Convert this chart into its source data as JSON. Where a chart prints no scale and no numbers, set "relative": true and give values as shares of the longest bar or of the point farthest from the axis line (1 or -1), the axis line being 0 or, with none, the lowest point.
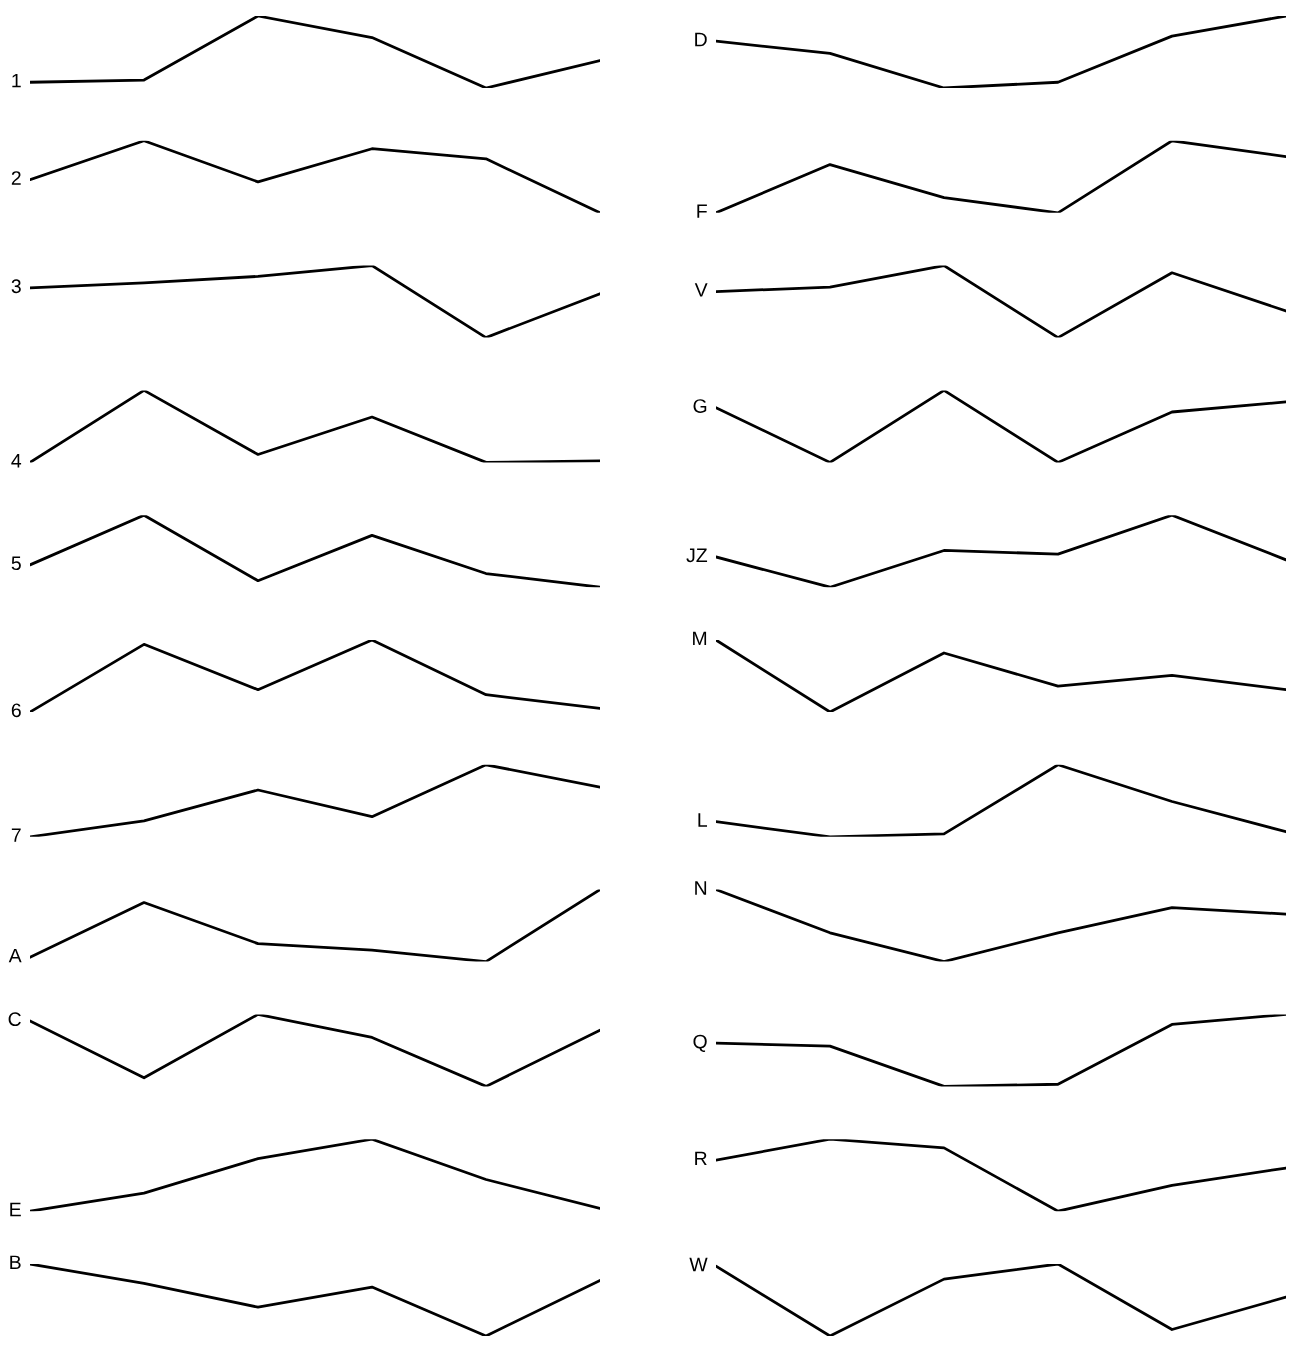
{
  "chart_data": [
    {
      "type": "line",
      "relative": true,
      "categories": [
        null,
        null,
        null,
        null,
        null,
        null
      ],
      "series": [
        {
          "name": "1",
          "color": "#000000",
          "values": [
            0.08,
            0.11,
            1,
            0.7,
            0,
            0.38
          ]
        }
      ]
    },
    {
      "type": "line",
      "relative": true,
      "categories": [
        null,
        null,
        null,
        null,
        null,
        null
      ],
      "series": [
        {
          "name": "D",
          "color": "#000000",
          "values": [
            0.65,
            0.48,
            0,
            0.08,
            0.72,
            1
          ]
        }
      ]
    },
    {
      "type": "line",
      "relative": true,
      "categories": [
        null,
        null,
        null,
        null,
        null,
        null
      ],
      "series": [
        {
          "name": "2",
          "color": "#000000",
          "values": [
            0.46,
            1,
            0.43,
            0.89,
            0.75,
            0
          ]
        }
      ]
    },
    {
      "type": "line",
      "relative": true,
      "categories": [
        null,
        null,
        null,
        null,
        null,
        null
      ],
      "series": [
        {
          "name": "F",
          "color": "#000000",
          "values": [
            0,
            0.67,
            0.21,
            0,
            1,
            0.78
          ]
        }
      ]
    },
    {
      "type": "line",
      "relative": true,
      "categories": [
        null,
        null,
        null,
        null,
        null,
        null
      ],
      "series": [
        {
          "name": "3",
          "color": "#000000",
          "values": [
            0.69,
            0.76,
            0.85,
            1,
            0,
            0.61
          ]
        }
      ]
    },
    {
      "type": "line",
      "relative": true,
      "categories": [
        null,
        null,
        null,
        null,
        null,
        null
      ],
      "series": [
        {
          "name": "V",
          "color": "#000000",
          "values": [
            0.64,
            0.7,
            1,
            0,
            0.9,
            0.37
          ]
        }
      ]
    },
    {
      "type": "line",
      "relative": true,
      "categories": [
        null,
        null,
        null,
        null,
        null,
        null
      ],
      "series": [
        {
          "name": "4",
          "color": "#000000",
          "values": [
            0,
            1,
            0.11,
            0.63,
            0,
            0.02
          ]
        }
      ]
    },
    {
      "type": "line",
      "relative": true,
      "categories": [
        null,
        null,
        null,
        null,
        null,
        null
      ],
      "series": [
        {
          "name": "G",
          "color": "#000000",
          "values": [
            0.76,
            0,
            1,
            0,
            0.7,
            0.84
          ]
        }
      ]
    },
    {
      "type": "line",
      "relative": true,
      "categories": [
        null,
        null,
        null,
        null,
        null,
        null
      ],
      "series": [
        {
          "name": "5",
          "color": "#000000",
          "values": [
            0.31,
            1,
            0.09,
            0.72,
            0.19,
            0
          ]
        }
      ]
    },
    {
      "type": "line",
      "relative": true,
      "categories": [
        null,
        null,
        null,
        null,
        null,
        null
      ],
      "series": [
        {
          "name": "JZ",
          "color": "#000000",
          "values": [
            0.42,
            0,
            0.51,
            0.46,
            1,
            0.38
          ]
        }
      ]
    },
    {
      "type": "line",
      "relative": true,
      "categories": [
        null,
        null,
        null,
        null,
        null,
        null
      ],
      "series": [
        {
          "name": "6",
          "color": "#000000",
          "values": [
            0,
            0.94,
            0.31,
            1,
            0.24,
            0.05
          ]
        }
      ]
    },
    {
      "type": "line",
      "relative": true,
      "categories": [
        null,
        null,
        null,
        null,
        null,
        null
      ],
      "series": [
        {
          "name": "M",
          "color": "#000000",
          "values": [
            1,
            0,
            0.82,
            0.36,
            0.51,
            0.31
          ]
        }
      ]
    },
    {
      "type": "line",
      "relative": true,
      "categories": [
        null,
        null,
        null,
        null,
        null,
        null
      ],
      "series": [
        {
          "name": "7",
          "color": "#000000",
          "values": [
            0,
            0.22,
            0.65,
            0.28,
            1,
            0.69
          ]
        }
      ]
    },
    {
      "type": "line",
      "relative": true,
      "categories": [
        null,
        null,
        null,
        null,
        null,
        null
      ],
      "series": [
        {
          "name": "L",
          "color": "#000000",
          "values": [
            0.21,
            0,
            0.04,
            1,
            0.49,
            0.07
          ]
        }
      ]
    },
    {
      "type": "line",
      "relative": true,
      "categories": [
        null,
        null,
        null,
        null,
        null,
        null
      ],
      "series": [
        {
          "name": "A",
          "color": "#000000",
          "values": [
            0.06,
            0.82,
            0.25,
            0.16,
            0,
            1
          ]
        }
      ]
    },
    {
      "type": "line",
      "relative": true,
      "categories": [
        null,
        null,
        null,
        null,
        null,
        null
      ],
      "series": [
        {
          "name": "N",
          "color": "#000000",
          "values": [
            1,
            0.4,
            0,
            0.4,
            0.75,
            0.66
          ]
        }
      ]
    },
    {
      "type": "line",
      "relative": true,
      "categories": [
        null,
        null,
        null,
        null,
        null,
        null
      ],
      "series": [
        {
          "name": "C",
          "color": "#000000",
          "values": [
            0.91,
            0.12,
            1,
            0.68,
            0,
            0.78
          ]
        }
      ]
    },
    {
      "type": "line",
      "relative": true,
      "categories": [
        null,
        null,
        null,
        null,
        null,
        null
      ],
      "series": [
        {
          "name": "Q",
          "color": "#000000",
          "values": [
            0.6,
            0.56,
            0,
            0.03,
            0.86,
            1
          ]
        }
      ]
    },
    {
      "type": "line",
      "relative": true,
      "categories": [
        null,
        null,
        null,
        null,
        null,
        null
      ],
      "series": [
        {
          "name": "E",
          "color": "#000000",
          "values": [
            0,
            0.25,
            0.73,
            1,
            0.44,
            0.04
          ]
        }
      ]
    },
    {
      "type": "line",
      "relative": true,
      "categories": [
        null,
        null,
        null,
        null,
        null,
        null
      ],
      "series": [
        {
          "name": "R",
          "color": "#000000",
          "values": [
            0.71,
            1,
            0.88,
            0,
            0.36,
            0.6
          ]
        }
      ]
    },
    {
      "type": "line",
      "relative": true,
      "categories": [
        null,
        null,
        null,
        null,
        null,
        null
      ],
      "series": [
        {
          "name": "B",
          "color": "#000000",
          "values": [
            1,
            0.73,
            0.4,
            0.68,
            0,
            0.77
          ]
        }
      ]
    },
    {
      "type": "line",
      "relative": true,
      "categories": [
        null,
        null,
        null,
        null,
        null,
        null
      ],
      "series": [
        {
          "name": "W",
          "color": "#000000",
          "values": [
            0.97,
            0,
            0.79,
            1,
            0.09,
            0.54
          ]
        }
      ]
    }
  ]
}
